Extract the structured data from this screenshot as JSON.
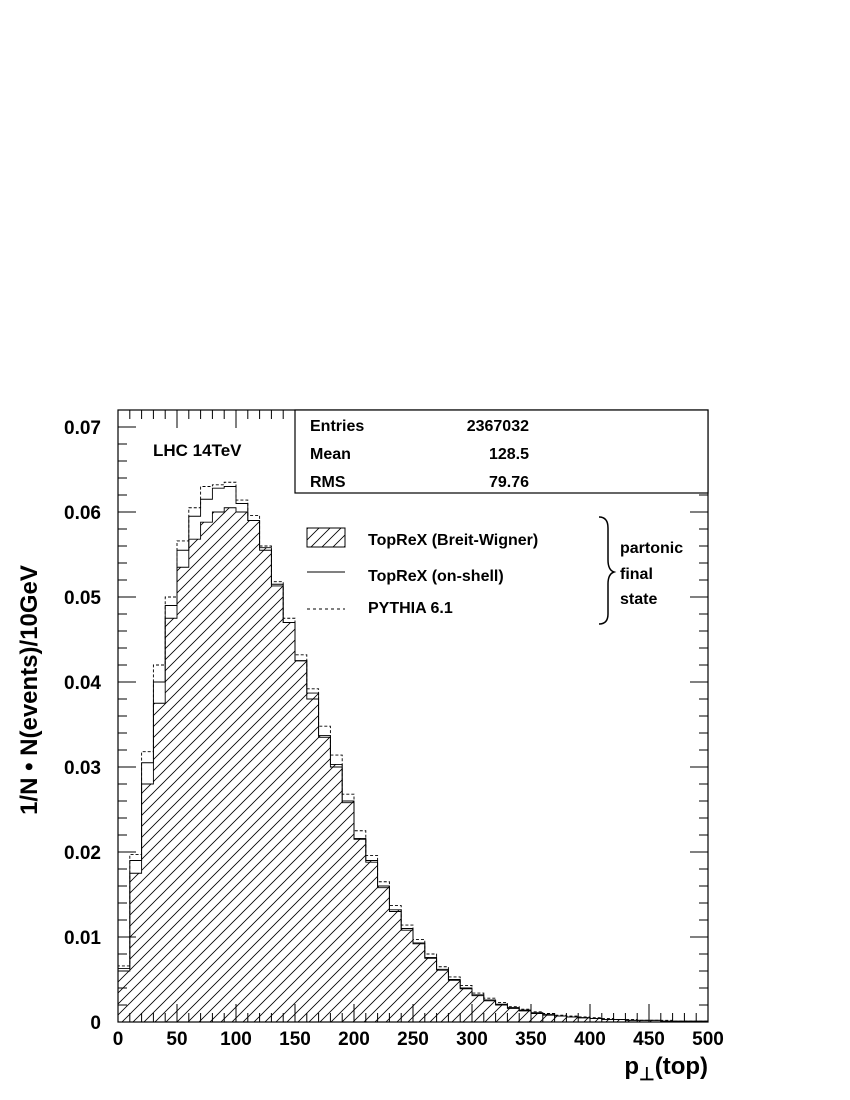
{
  "chart_data": {
    "type": "histogram",
    "annotation": "LHC 14TeV",
    "xlabel": "p⊥(top)",
    "ylabel": "1/N • N(events)/10GeV",
    "xlim": [
      0,
      500
    ],
    "ylim": [
      0,
      0.072
    ],
    "x_ticks": [
      "0",
      "50",
      "100",
      "150",
      "200",
      "250",
      "300",
      "350",
      "400",
      "450",
      "500"
    ],
    "y_ticks": [
      "0",
      "0.01",
      "0.02",
      "0.03",
      "0.04",
      "0.05",
      "0.06",
      "0.07"
    ],
    "bin_width": 10,
    "bin_edges_start": 0,
    "stats_box": {
      "entries_label": "Entries",
      "entries_value": "2367032",
      "mean_label": "Mean",
      "mean_value": "128.5",
      "rms_label": "RMS",
      "rms_value": "79.76"
    },
    "legend": {
      "items": [
        {
          "label": "TopReX (Breit-Wigner)",
          "style": "hatched"
        },
        {
          "label": "TopReX (on-shell)",
          "style": "solid"
        },
        {
          "label": "PYTHIA 6.1",
          "style": "dashed"
        }
      ],
      "brace_label_lines": [
        "partonic",
        "final",
        "state"
      ]
    },
    "series": [
      {
        "style": "hatched",
        "values": [
          0.006,
          0.0175,
          0.028,
          0.0375,
          0.0475,
          0.0535,
          0.0568,
          0.0588,
          0.06,
          0.0605,
          0.06,
          0.059,
          0.0558,
          0.0513,
          0.047,
          0.0425,
          0.0387,
          0.0337,
          0.0303,
          0.026,
          0.0216,
          0.019,
          0.016,
          0.0132,
          0.011,
          0.0093,
          0.0076,
          0.0062,
          0.005,
          0.004,
          0.0032,
          0.0026,
          0.0021,
          0.0017,
          0.0014,
          0.0011,
          0.0009,
          0.0007,
          0.0006,
          0.0005,
          0.0004,
          0.0003,
          0.0003,
          0.0002,
          0.0002,
          0.0002,
          0.0001,
          0.0001,
          0.0001,
          0.0001
        ]
      },
      {
        "style": "solid",
        "values": [
          0.0063,
          0.019,
          0.0305,
          0.04,
          0.049,
          0.0555,
          0.0595,
          0.0615,
          0.0628,
          0.063,
          0.061,
          0.059,
          0.0555,
          0.0515,
          0.047,
          0.0425,
          0.038,
          0.0335,
          0.03,
          0.0258,
          0.0215,
          0.0188,
          0.0158,
          0.013,
          0.0108,
          0.0092,
          0.0075,
          0.0061,
          0.0049,
          0.0039,
          0.0031,
          0.0025,
          0.002,
          0.0016,
          0.0013,
          0.001,
          0.0008,
          0.0007,
          0.0006,
          0.0005,
          0.0004,
          0.0003,
          0.0003,
          0.0002,
          0.0002,
          0.0002,
          0.0001,
          0.0001,
          0.0001,
          0.0001
        ]
      },
      {
        "style": "dashed",
        "values": [
          0.0066,
          0.0197,
          0.0318,
          0.042,
          0.05,
          0.0566,
          0.0605,
          0.063,
          0.0632,
          0.0635,
          0.0614,
          0.0596,
          0.056,
          0.0518,
          0.0475,
          0.0432,
          0.0392,
          0.0348,
          0.0314,
          0.0268,
          0.0225,
          0.0196,
          0.0165,
          0.0137,
          0.0114,
          0.0097,
          0.008,
          0.0065,
          0.0053,
          0.0043,
          0.0034,
          0.0028,
          0.0023,
          0.0018,
          0.0015,
          0.0012,
          0.001,
          0.0008,
          0.0007,
          0.0006,
          0.0005,
          0.0004,
          0.0003,
          0.0003,
          0.0002,
          0.0002,
          0.0002,
          0.0001,
          0.0001,
          0.0001
        ]
      }
    ]
  }
}
